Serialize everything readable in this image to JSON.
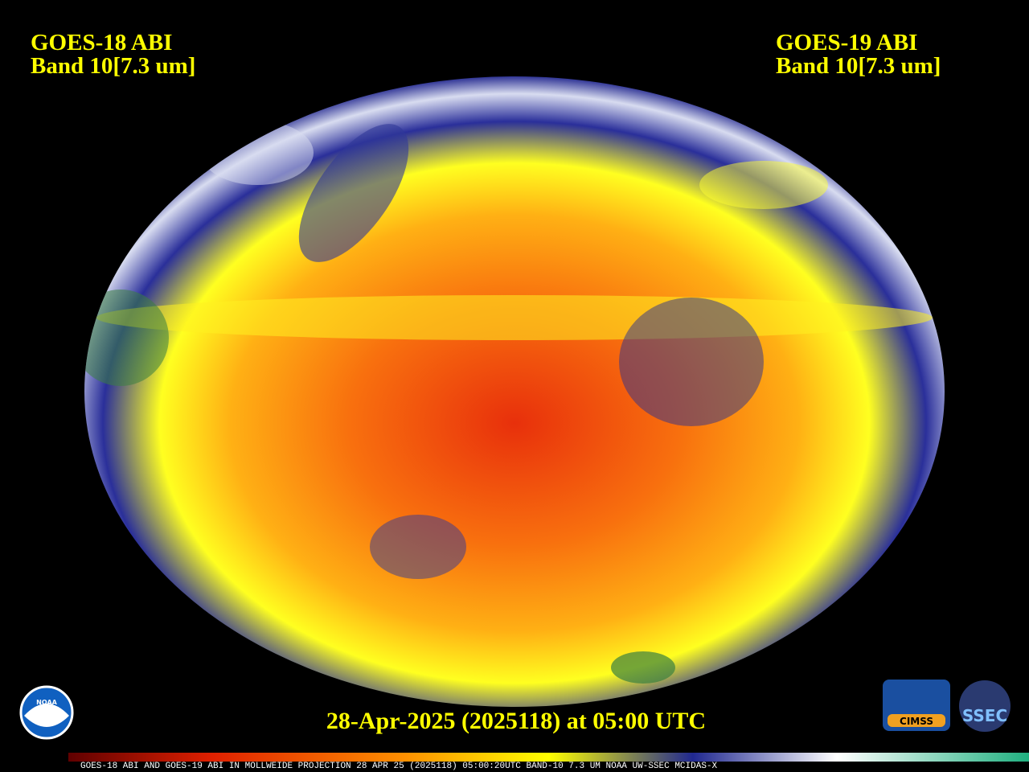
{
  "header": {
    "left": {
      "line1": "GOES-18 ABI",
      "line2": "Band 10[7.3 um]"
    },
    "right": {
      "line1": "GOES-19 ABI",
      "line2": "Band 10[7.3 um]"
    }
  },
  "timestamp": "28-Apr-2025 (2025118) at 05:00 UTC",
  "logos": {
    "noaa": "NOAA",
    "cimss": "CIMSS",
    "ssec": "SSEC"
  },
  "footer": "GOES-18 ABI AND GOES-19 ABI IN MOLLWEIDE PROJECTION 28 APR 25 (2025118) 05:00:20UTC BAND-10 7.3 UM NOAA UW-SSEC MCIDAS-X"
}
